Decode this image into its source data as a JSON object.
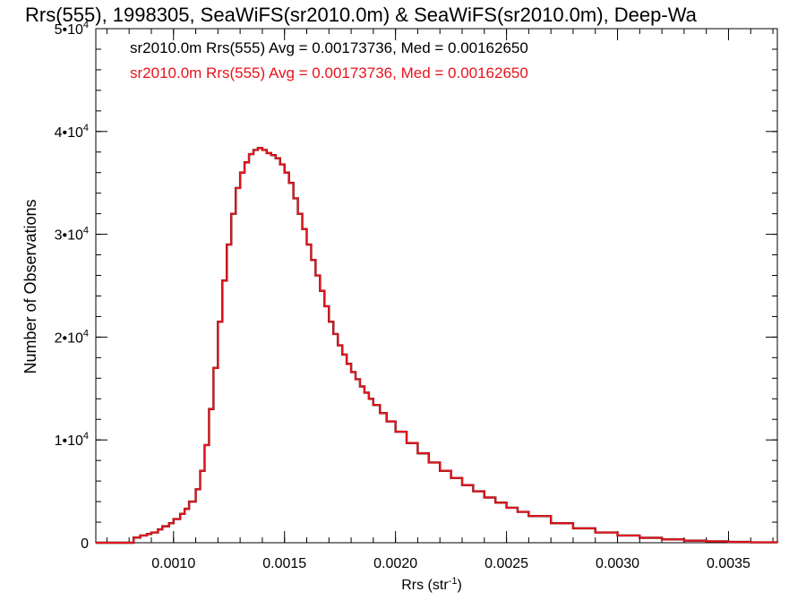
{
  "chart_data": {
    "type": "line",
    "title": "Rrs(555), 1998305, SeaWiFS(sr2010.0m) & SeaWiFS(sr2010.0m), Deep-Wa",
    "xlabel": "Rrs (str",
    "xlabel_sup": "-1",
    "xlabel_end": ")",
    "ylabel": "Number of Observations",
    "xlim": [
      0.00065,
      0.00372
    ],
    "ylim": [
      0,
      50000
    ],
    "grid": false,
    "legend_position": "top-left",
    "x_ticks": [
      {
        "value": 0.001,
        "label": "0.0010"
      },
      {
        "value": 0.0015,
        "label": "0.0015"
      },
      {
        "value": 0.002,
        "label": "0.0020"
      },
      {
        "value": 0.0025,
        "label": "0.0025"
      },
      {
        "value": 0.003,
        "label": "0.0030"
      },
      {
        "value": 0.0035,
        "label": "0.0035"
      }
    ],
    "y_ticks": [
      {
        "value": 0,
        "mant": "0",
        "exp": ""
      },
      {
        "value": 10000,
        "mant": "1•10",
        "exp": "4"
      },
      {
        "value": 20000,
        "mant": "2•10",
        "exp": "4"
      },
      {
        "value": 30000,
        "mant": "3•10",
        "exp": "4"
      },
      {
        "value": 40000,
        "mant": "4•10",
        "exp": "4"
      },
      {
        "value": 50000,
        "mant": "5•10",
        "exp": "4"
      }
    ],
    "x_minor_step": 0.0001,
    "y_minor_step": 2000,
    "series": [
      {
        "name": "sr2010.0m Rrs(555) Avg = 0.00173736, Med = 0.00162650",
        "color": "#000000",
        "style": "step",
        "x": [
          0.00065,
          0.0008,
          0.00082,
          0.00085,
          0.00088,
          0.0009,
          0.00093,
          0.00095,
          0.00098,
          0.001,
          0.00103,
          0.00105,
          0.00107,
          0.0011,
          0.00112,
          0.00114,
          0.00116,
          0.00118,
          0.0012,
          0.00122,
          0.00124,
          0.00126,
          0.00128,
          0.0013,
          0.00132,
          0.00134,
          0.00136,
          0.00138,
          0.0014,
          0.00142,
          0.00144,
          0.00146,
          0.00148,
          0.0015,
          0.00152,
          0.00154,
          0.00156,
          0.00158,
          0.0016,
          0.00162,
          0.00164,
          0.00166,
          0.00168,
          0.0017,
          0.00172,
          0.00174,
          0.00176,
          0.00178,
          0.0018,
          0.00182,
          0.00184,
          0.00186,
          0.00188,
          0.0019,
          0.00193,
          0.00196,
          0.002,
          0.00205,
          0.0021,
          0.00215,
          0.0022,
          0.00225,
          0.0023,
          0.00235,
          0.0024,
          0.00245,
          0.0025,
          0.00255,
          0.0026,
          0.0027,
          0.0028,
          0.0029,
          0.003,
          0.0031,
          0.0032,
          0.0033,
          0.0034,
          0.0035,
          0.0036,
          0.00372
        ],
        "values": [
          0,
          0,
          500,
          700,
          850,
          1000,
          1300,
          1600,
          1900,
          2300,
          2800,
          3300,
          4000,
          5200,
          7000,
          9500,
          13000,
          17000,
          21500,
          25500,
          29000,
          32000,
          34500,
          36000,
          37000,
          37800,
          38200,
          38400,
          38200,
          37900,
          37700,
          37400,
          36800,
          36000,
          35000,
          33500,
          32000,
          30500,
          29000,
          27500,
          26000,
          24500,
          23000,
          21500,
          20300,
          19200,
          18300,
          17400,
          16600,
          15900,
          15200,
          14600,
          14000,
          13400,
          12600,
          11800,
          10800,
          9700,
          8700,
          7800,
          7000,
          6300,
          5600,
          5000,
          4400,
          3900,
          3400,
          3000,
          2600,
          1900,
          1400,
          1000,
          700,
          480,
          320,
          200,
          130,
          80,
          40,
          20
        ]
      },
      {
        "name": "sr2010.0m Rrs(555) Avg = 0.00173736, Med = 0.00162650",
        "color": "#e8131b",
        "style": "step",
        "x": [
          0.00065,
          0.0008,
          0.00082,
          0.00085,
          0.00088,
          0.0009,
          0.00093,
          0.00095,
          0.00098,
          0.001,
          0.00103,
          0.00105,
          0.00107,
          0.0011,
          0.00112,
          0.00114,
          0.00116,
          0.00118,
          0.0012,
          0.00122,
          0.00124,
          0.00126,
          0.00128,
          0.0013,
          0.00132,
          0.00134,
          0.00136,
          0.00138,
          0.0014,
          0.00142,
          0.00144,
          0.00146,
          0.00148,
          0.0015,
          0.00152,
          0.00154,
          0.00156,
          0.00158,
          0.0016,
          0.00162,
          0.00164,
          0.00166,
          0.00168,
          0.0017,
          0.00172,
          0.00174,
          0.00176,
          0.00178,
          0.0018,
          0.00182,
          0.00184,
          0.00186,
          0.00188,
          0.0019,
          0.00193,
          0.00196,
          0.002,
          0.00205,
          0.0021,
          0.00215,
          0.0022,
          0.00225,
          0.0023,
          0.00235,
          0.0024,
          0.00245,
          0.0025,
          0.00255,
          0.0026,
          0.0027,
          0.0028,
          0.0029,
          0.003,
          0.0031,
          0.0032,
          0.0033,
          0.0034,
          0.0035,
          0.0036,
          0.00372
        ],
        "values": [
          0,
          0,
          500,
          700,
          850,
          1000,
          1300,
          1600,
          1900,
          2300,
          2800,
          3300,
          4000,
          5200,
          7000,
          9500,
          13000,
          17000,
          21500,
          25500,
          29000,
          32000,
          34500,
          36000,
          37000,
          37800,
          38200,
          38400,
          38200,
          37900,
          37700,
          37400,
          36800,
          36000,
          35000,
          33500,
          32000,
          30500,
          29000,
          27500,
          26000,
          24500,
          23000,
          21500,
          20300,
          19200,
          18300,
          17400,
          16600,
          15900,
          15200,
          14600,
          14000,
          13400,
          12600,
          11800,
          10800,
          9700,
          8700,
          7800,
          7000,
          6300,
          5600,
          5000,
          4400,
          3900,
          3400,
          3000,
          2600,
          1900,
          1400,
          1000,
          700,
          480,
          320,
          200,
          130,
          80,
          40,
          20
        ]
      }
    ]
  }
}
